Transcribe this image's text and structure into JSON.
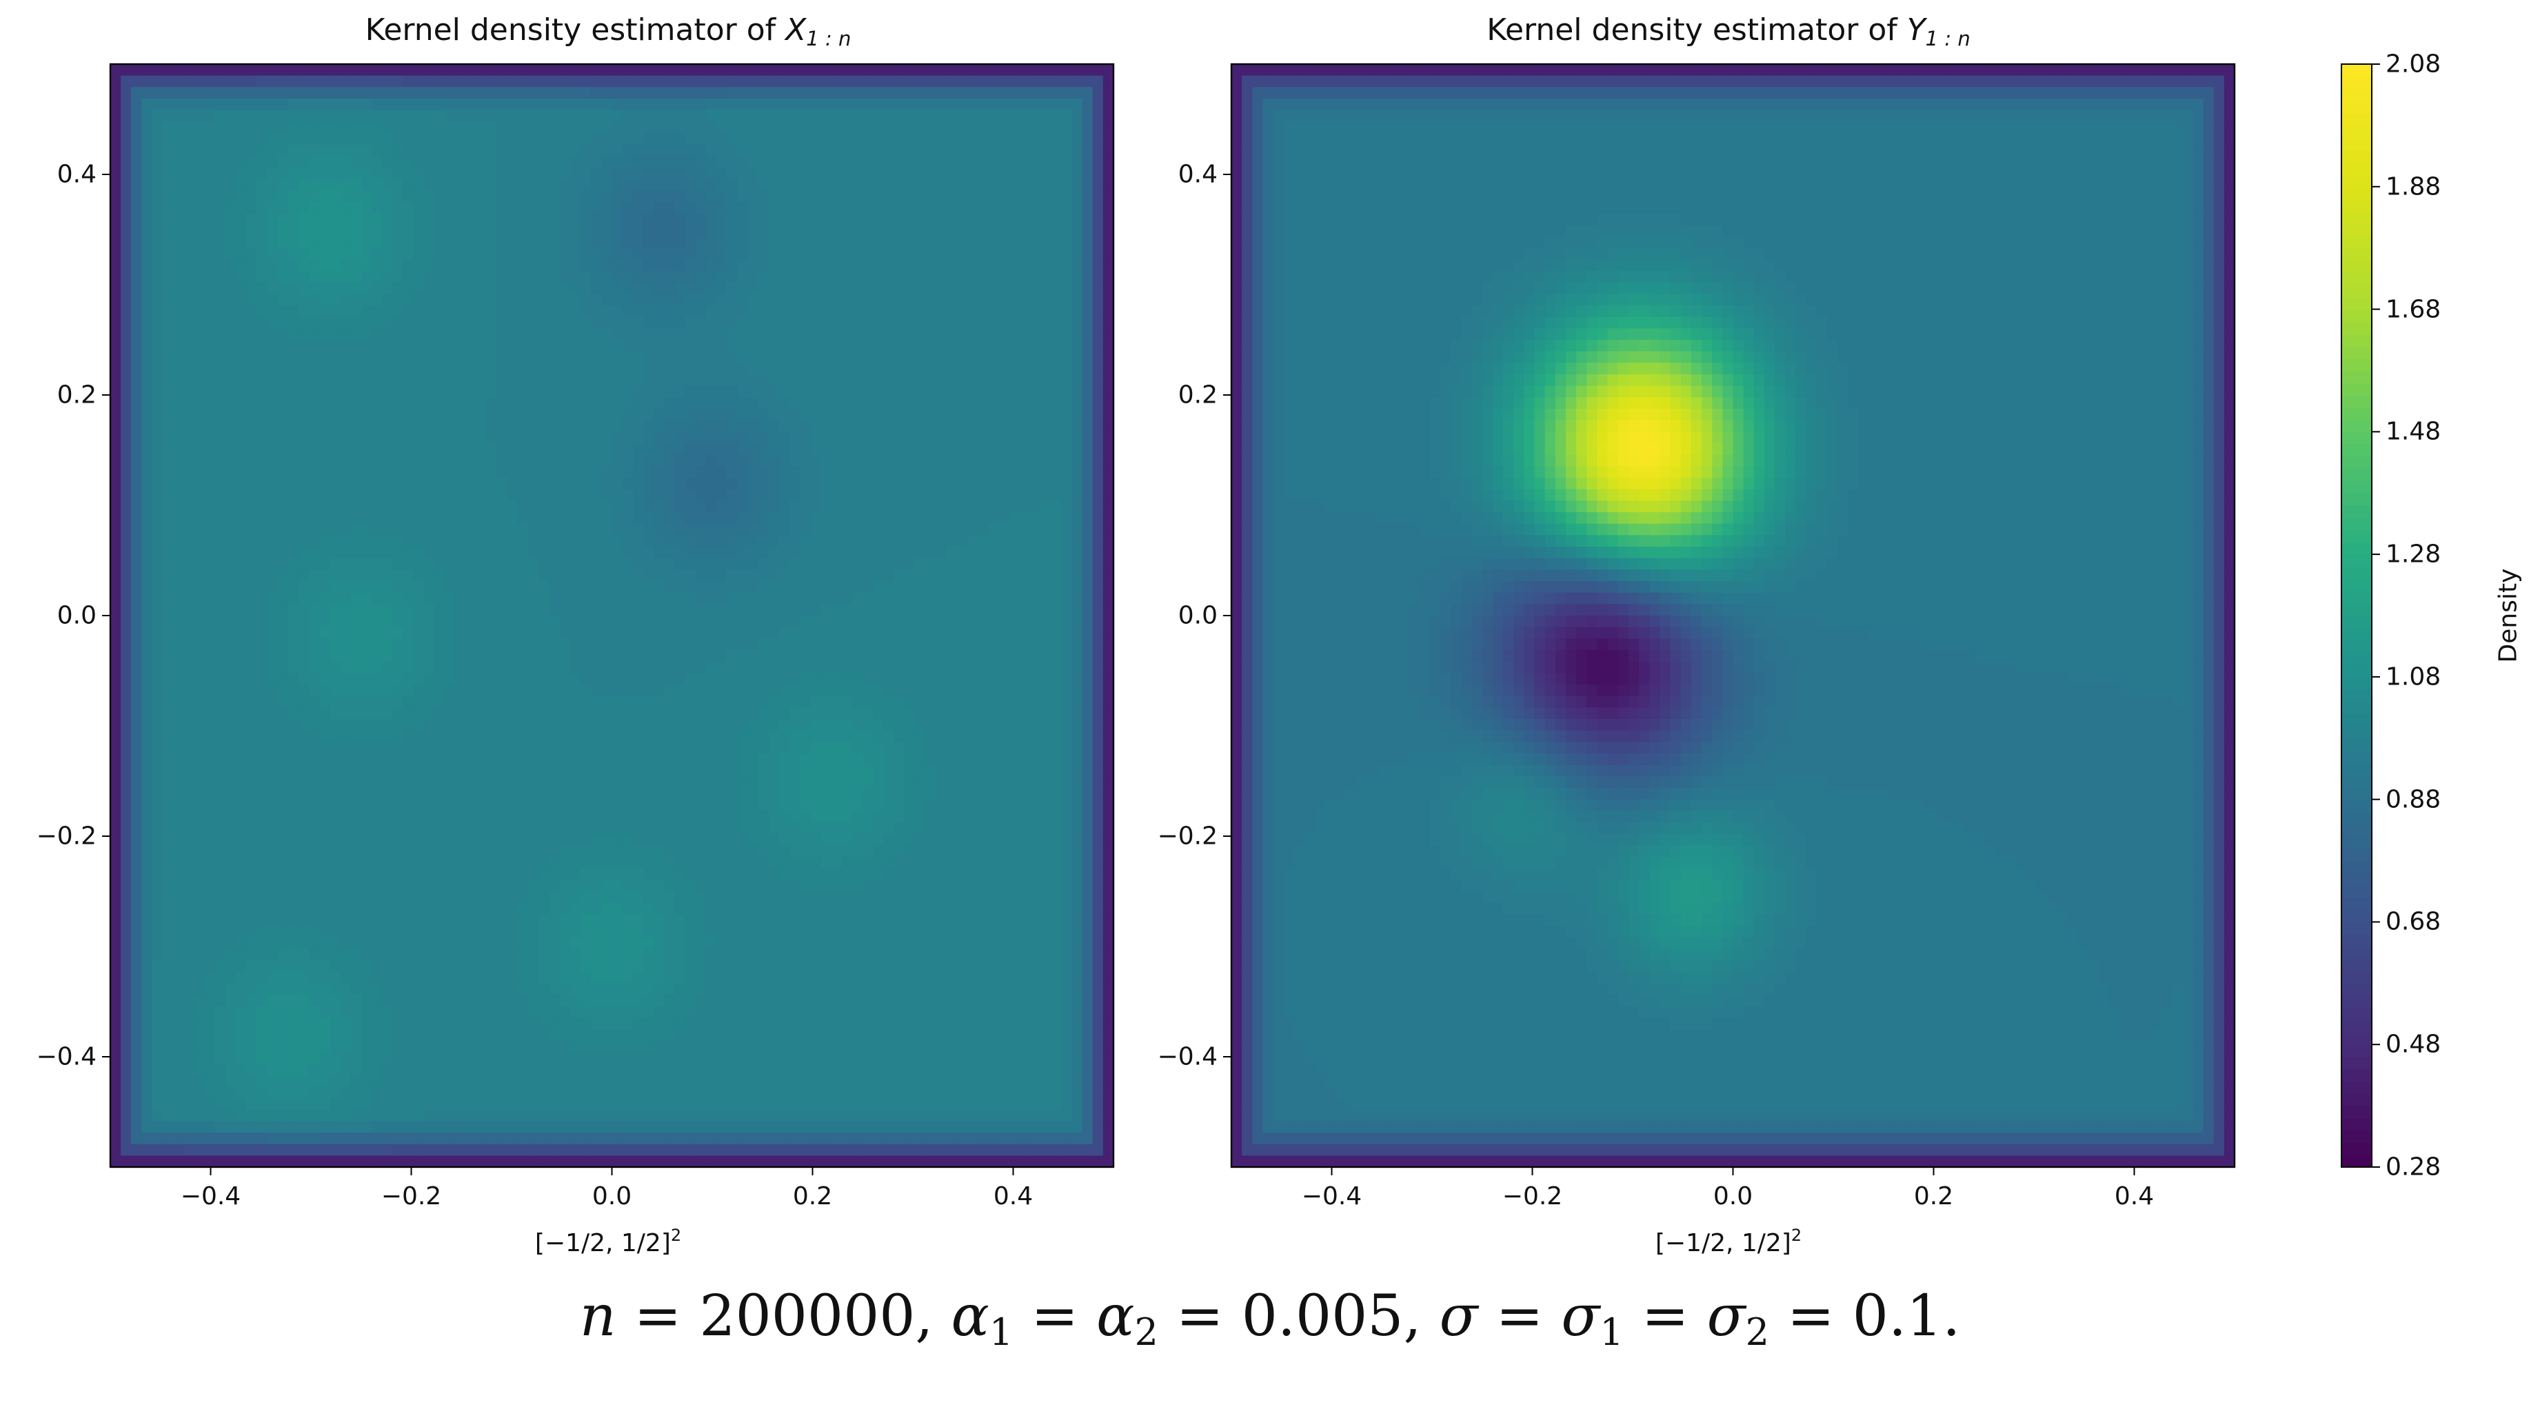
{
  "figure_caption": "n = 200000, α1 = α2 = 0.005, σ = σ1 = σ2 = 0.1.",
  "chart_data": [
    {
      "type": "heatmap",
      "subtype": "filled-contour",
      "title": "Kernel density estimator of X1:n",
      "title_parts": {
        "prefix": "Kernel density estimator of ",
        "var": "X",
        "sub": "1 : n"
      },
      "xlabel": "[−1/2, 1/2]²",
      "xlabel_parts": {
        "base": "[−1/2, 1/2]",
        "sup": "2"
      },
      "ylabel": "",
      "xlim": [
        -0.5,
        0.5
      ],
      "ylim": [
        -0.5,
        0.5
      ],
      "xticks": [
        -0.4,
        -0.2,
        0.0,
        0.2,
        0.4
      ],
      "yticks": [
        -0.4,
        -0.2,
        0.0,
        0.2,
        0.4
      ],
      "xtick_labels": [
        "−0.4",
        "−0.2",
        "0.0",
        "0.2",
        "0.4"
      ],
      "ytick_labels": [
        "−0.4",
        "−0.2",
        "0.0",
        "0.2",
        "0.4"
      ],
      "baseline_density": 0.98,
      "edge_falloff_to": 0.3,
      "features": [
        {
          "x": -0.28,
          "y": 0.35,
          "density": 1.1,
          "note": "slight bump"
        },
        {
          "x": 0.05,
          "y": 0.35,
          "density": 0.85,
          "note": "small dip"
        },
        {
          "x": 0.1,
          "y": 0.12,
          "density": 0.85,
          "note": "small dip"
        },
        {
          "x": -0.25,
          "y": -0.02,
          "density": 1.08,
          "note": "slight bump"
        },
        {
          "x": 0.22,
          "y": -0.15,
          "density": 1.08,
          "note": "slight bump"
        },
        {
          "x": -0.32,
          "y": -0.38,
          "density": 1.08,
          "note": "slight bump"
        },
        {
          "x": 0.0,
          "y": -0.3,
          "density": 1.08,
          "note": "slight bump"
        }
      ]
    },
    {
      "type": "heatmap",
      "subtype": "filled-contour",
      "title": "Kernel density estimator of Y1:n",
      "title_parts": {
        "prefix": "Kernel density estimator of ",
        "var": "Y",
        "sub": "1 : n"
      },
      "xlabel": "[−1/2, 1/2]²",
      "xlabel_parts": {
        "base": "[−1/2, 1/2]",
        "sup": "2"
      },
      "ylabel": "",
      "xlim": [
        -0.5,
        0.5
      ],
      "ylim": [
        -0.5,
        0.5
      ],
      "xticks": [
        -0.4,
        -0.2,
        0.0,
        0.2,
        0.4
      ],
      "yticks": [
        -0.4,
        -0.2,
        0.0,
        0.2,
        0.4
      ],
      "xtick_labels": [
        "−0.4",
        "−0.2",
        "0.0",
        "0.2",
        "0.4"
      ],
      "ytick_labels": [
        "−0.4",
        "−0.2",
        "0.0",
        "0.2",
        "0.4"
      ],
      "baseline_density": 0.92,
      "edge_falloff_to": 0.3,
      "features": [
        {
          "x": -0.09,
          "y": 0.15,
          "density": 2.08,
          "note": "peak"
        },
        {
          "x": -0.13,
          "y": -0.04,
          "density": 0.3,
          "note": "minimum"
        },
        {
          "x": -0.04,
          "y": -0.25,
          "density": 1.15,
          "note": "slight bump"
        },
        {
          "x": -0.2,
          "y": -0.16,
          "density": 1.08,
          "note": "slight bump"
        }
      ]
    }
  ],
  "colorbar": {
    "label": "Density",
    "colormap": "viridis",
    "range": [
      0.28,
      2.08
    ],
    "ticks": [
      0.28,
      0.48,
      0.68,
      0.88,
      1.08,
      1.28,
      1.48,
      1.68,
      1.88,
      2.08
    ],
    "tick_labels": [
      "0.28",
      "0.48",
      "0.68",
      "0.88",
      "1.08",
      "1.28",
      "1.48",
      "1.68",
      "1.88",
      "2.08"
    ]
  }
}
